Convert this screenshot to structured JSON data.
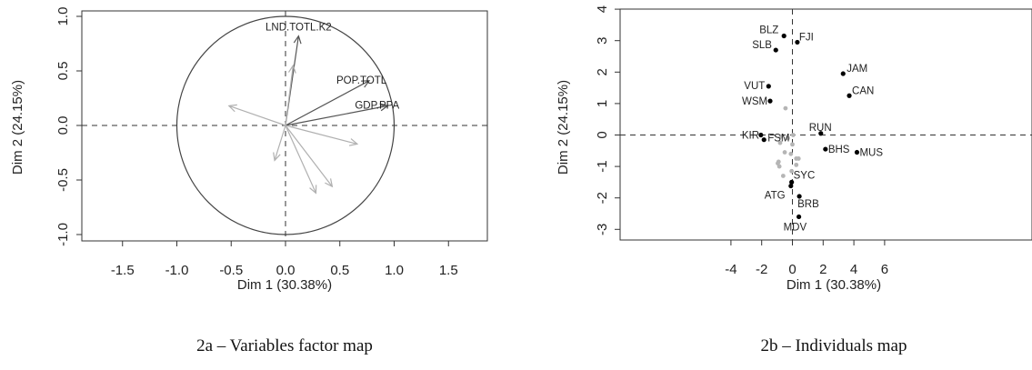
{
  "chart_data": [
    {
      "type": "scatter",
      "title": "",
      "caption": "2a – Variables factor map",
      "xlabel": "Dim 1 (30.38%)",
      "ylabel": "Dim 2 (24.15%)",
      "xlim": [
        -1.85,
        1.85
      ],
      "ylim": [
        -1.1,
        1.1
      ],
      "xticks": [
        "-1.5",
        "-1.0",
        "-0.5",
        "0.0",
        "0.5",
        "1.0",
        "1.5"
      ],
      "yticks": [
        "-1.0",
        "-0.5",
        "0.0",
        "0.5",
        "1.0"
      ],
      "unit_circle": true,
      "grid": false,
      "arrows": [
        {
          "label": "LND.TOTL.K2",
          "x": 0.12,
          "y": 0.82,
          "color": "#555555"
        },
        {
          "label": "POP.TOTL",
          "x": 0.77,
          "y": 0.41,
          "color": "#555555"
        },
        {
          "label": "GDP.PPA",
          "x": 0.94,
          "y": 0.18,
          "color": "#555555"
        },
        {
          "label": "",
          "x": 0.07,
          "y": 0.55,
          "color": "#b0b0b0"
        },
        {
          "label": "",
          "x": -0.52,
          "y": 0.18,
          "color": "#b0b0b0"
        },
        {
          "label": "",
          "x": 0.66,
          "y": -0.17,
          "color": "#b0b0b0"
        },
        {
          "label": "",
          "x": 0.43,
          "y": -0.56,
          "color": "#b0b0b0"
        },
        {
          "label": "",
          "x": 0.28,
          "y": -0.62,
          "color": "#b0b0b0"
        },
        {
          "label": "",
          "x": -0.1,
          "y": -0.32,
          "color": "#b0b0b0"
        }
      ]
    },
    {
      "type": "scatter",
      "title": "",
      "caption": "2b – Individuals map",
      "xlabel": "Dim 1 (30.38%)",
      "ylabel": "Dim 2 (24.15%)",
      "xlim": [
        -5,
        7.8
      ],
      "ylim": [
        -3.4,
        4.1
      ],
      "xticks": [
        "-4",
        "-2",
        "0",
        "2",
        "4",
        "6"
      ],
      "yticks": [
        "-3",
        "-2",
        "-1",
        "0",
        "1",
        "2",
        "3",
        "4"
      ],
      "grid": false,
      "points": [
        {
          "label": "BLZ",
          "x": -0.55,
          "y": 3.15,
          "color": "#000000"
        },
        {
          "label": "FJI",
          "x": 0.32,
          "y": 2.95,
          "color": "#000000"
        },
        {
          "label": "SLB",
          "x": -1.08,
          "y": 2.7,
          "color": "#000000"
        },
        {
          "label": "JAM",
          "x": 3.3,
          "y": 1.95,
          "color": "#000000"
        },
        {
          "label": "VUT",
          "x": -1.55,
          "y": 1.55,
          "color": "#000000"
        },
        {
          "label": "CAN",
          "x": 3.7,
          "y": 1.25,
          "color": "#000000"
        },
        {
          "label": "WSM",
          "x": -1.45,
          "y": 1.08,
          "color": "#000000"
        },
        {
          "label": "RUN",
          "x": 1.85,
          "y": 0.05,
          "color": "#000000"
        },
        {
          "label": "KIR",
          "x": -2.05,
          "y": 0.0,
          "color": "#000000"
        },
        {
          "label": "FSM",
          "x": -1.85,
          "y": -0.15,
          "color": "#000000"
        },
        {
          "label": "BHS",
          "x": 2.15,
          "y": -0.45,
          "color": "#000000"
        },
        {
          "label": "MUS",
          "x": 4.2,
          "y": -0.55,
          "color": "#000000"
        },
        {
          "label": "SYC",
          "x": -0.05,
          "y": -1.5,
          "color": "#000000"
        },
        {
          "label": "ATG",
          "x": -0.1,
          "y": -1.62,
          "color": "#000000"
        },
        {
          "label": "BRB",
          "x": 0.45,
          "y": -1.95,
          "color": "#000000"
        },
        {
          "label": "MDV",
          "x": 0.42,
          "y": -2.6,
          "color": "#000000"
        },
        {
          "label": "",
          "x": -0.45,
          "y": 0.85,
          "color": "#b5b5b5"
        },
        {
          "label": "",
          "x": -0.75,
          "y": -0.05,
          "color": "#b5b5b5"
        },
        {
          "label": "",
          "x": -0.8,
          "y": -0.25,
          "color": "#b5b5b5"
        },
        {
          "label": "",
          "x": -0.9,
          "y": -0.85,
          "color": "#b5b5b5"
        },
        {
          "label": "",
          "x": -0.85,
          "y": -1.0,
          "color": "#b5b5b5"
        },
        {
          "label": "",
          "x": -0.95,
          "y": -0.9,
          "color": "#b5b5b5"
        },
        {
          "label": "",
          "x": -0.6,
          "y": -1.3,
          "color": "#b5b5b5"
        },
        {
          "label": "",
          "x": -0.5,
          "y": -0.55,
          "color": "#b5b5b5"
        },
        {
          "label": "",
          "x": -0.1,
          "y": -0.6,
          "color": "#b5b5b5"
        },
        {
          "label": "",
          "x": 0.25,
          "y": -0.75,
          "color": "#b5b5b5"
        },
        {
          "label": "",
          "x": 0.4,
          "y": -0.75,
          "color": "#b5b5b5"
        },
        {
          "label": "",
          "x": 0.25,
          "y": -0.95,
          "color": "#b5b5b5"
        },
        {
          "label": "",
          "x": -0.05,
          "y": -1.15,
          "color": "#b5b5b5"
        },
        {
          "label": "",
          "x": 0.0,
          "y": -0.3,
          "color": "#b5b5b5"
        },
        {
          "label": "",
          "x": -0.3,
          "y": -0.1,
          "color": "#b5b5b5"
        },
        {
          "label": "",
          "x": 0.05,
          "y": 0.0,
          "color": "#b5b5b5"
        }
      ]
    }
  ]
}
